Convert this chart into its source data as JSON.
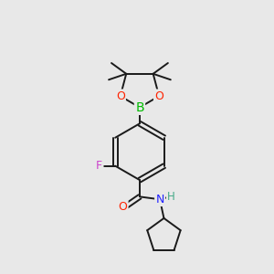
{
  "bg_color": "#e8e8e8",
  "bond_color": "#1a1a1a",
  "atom_colors": {
    "B": "#00bb00",
    "O": "#ff2200",
    "F": "#cc44cc",
    "N": "#2222ff",
    "O_carbonyl": "#ff2200",
    "H_amide": "#44aa88"
  },
  "line_width": 1.4,
  "font_size_atoms": 9
}
